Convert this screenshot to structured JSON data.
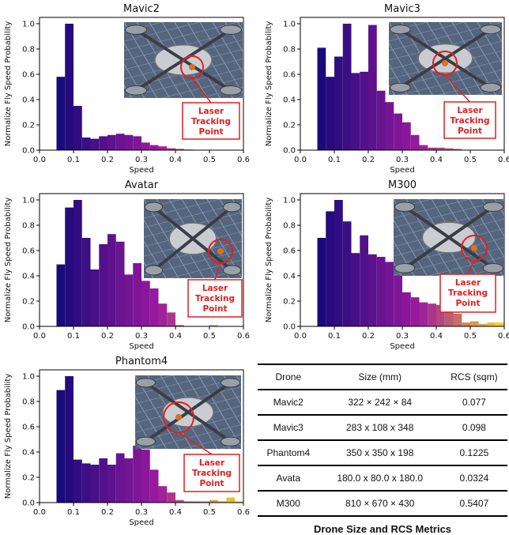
{
  "chart_data": [
    {
      "type": "bar",
      "title": "Mavic2",
      "xlabel": "Speed",
      "ylabel": "Normalize Fly Speed Probability",
      "xlim": [
        0.0,
        0.6
      ],
      "ylim": [
        0.0,
        1.05
      ],
      "xticks": [
        "0.0",
        "0.1",
        "0.2",
        "0.3",
        "0.4",
        "0.5",
        "0.6"
      ],
      "yticks": [
        "0.0",
        "0.2",
        "0.4",
        "0.6",
        "0.8",
        "1.0"
      ],
      "x": [
        0.05,
        0.075,
        0.1,
        0.125,
        0.15,
        0.175,
        0.2,
        0.225,
        0.25,
        0.275,
        0.3,
        0.325,
        0.35,
        0.375,
        0.4,
        0.425,
        0.45,
        0.475,
        0.5,
        0.525,
        0.55,
        0.575
      ],
      "bin_width": 0.025,
      "values": [
        0.58,
        1.0,
        0.35,
        0.1,
        0.09,
        0.11,
        0.12,
        0.13,
        0.12,
        0.11,
        0.06,
        0.04,
        0.03,
        0.015,
        0.01,
        0.005,
        0.0,
        0.0,
        0.0,
        0.0,
        0.0,
        0.0
      ],
      "photo_label": "Laser\nTracking\nPoint"
    },
    {
      "type": "bar",
      "title": "Mavic3",
      "xlabel": "Speed",
      "ylabel": "Normalize Fly Speed Probability",
      "xlim": [
        0.0,
        0.6
      ],
      "ylim": [
        0.0,
        1.05
      ],
      "xticks": [
        "0.0",
        "0.1",
        "0.2",
        "0.3",
        "0.4",
        "0.5",
        "0.6"
      ],
      "yticks": [
        "0.0",
        "0.2",
        "0.4",
        "0.6",
        "0.8",
        "1.0"
      ],
      "x": [
        0.05,
        0.075,
        0.1,
        0.125,
        0.15,
        0.175,
        0.2,
        0.225,
        0.25,
        0.275,
        0.3,
        0.325,
        0.35,
        0.375,
        0.4,
        0.425,
        0.45,
        0.475,
        0.5,
        0.525,
        0.55,
        0.575
      ],
      "bin_width": 0.025,
      "values": [
        0.81,
        0.58,
        0.74,
        1.0,
        0.61,
        0.62,
        0.99,
        0.47,
        0.38,
        0.29,
        0.22,
        0.12,
        0.04,
        0.02,
        0.02,
        0.015,
        0.01,
        0.0,
        0.0,
        0.0,
        0.0,
        0.0
      ],
      "photo_label": "Laser\nTracking\nPoint"
    },
    {
      "type": "bar",
      "title": "Avatar",
      "xlabel": "Speed",
      "ylabel": "Normalize Fly Speed Probability",
      "xlim": [
        0.0,
        0.6
      ],
      "ylim": [
        0.0,
        1.05
      ],
      "xticks": [
        "0.0",
        "0.1",
        "0.2",
        "0.3",
        "0.4",
        "0.5",
        "0.6"
      ],
      "yticks": [
        "0.0",
        "0.2",
        "0.4",
        "0.6",
        "0.8",
        "1.0"
      ],
      "x": [
        0.05,
        0.075,
        0.1,
        0.125,
        0.15,
        0.175,
        0.2,
        0.225,
        0.25,
        0.275,
        0.3,
        0.325,
        0.35,
        0.375,
        0.4,
        0.425,
        0.45,
        0.475,
        0.5,
        0.525,
        0.55,
        0.575
      ],
      "bin_width": 0.025,
      "values": [
        0.49,
        0.94,
        1.0,
        0.7,
        0.45,
        0.65,
        0.73,
        0.67,
        0.41,
        0.5,
        0.36,
        0.3,
        0.18,
        0.11,
        0.01,
        0.0,
        0.0,
        0.0,
        0.01,
        0.0,
        0.0,
        0.0
      ],
      "photo_label": "Laser\nTracking\nPoint"
    },
    {
      "type": "bar",
      "title": "M300",
      "xlabel": "Speed",
      "ylabel": "Normalize Fly Speed Probability",
      "xlim": [
        0.0,
        0.6
      ],
      "ylim": [
        0.0,
        1.05
      ],
      "xticks": [
        "0.0",
        "0.1",
        "0.2",
        "0.3",
        "0.4",
        "0.5",
        "0.6"
      ],
      "yticks": [
        "0.0",
        "0.2",
        "0.4",
        "0.6",
        "0.8",
        "1.0"
      ],
      "x": [
        0.05,
        0.075,
        0.1,
        0.125,
        0.15,
        0.175,
        0.2,
        0.225,
        0.25,
        0.275,
        0.3,
        0.325,
        0.35,
        0.375,
        0.4,
        0.425,
        0.45,
        0.475,
        0.5,
        0.525,
        0.55,
        0.575
      ],
      "bin_width": 0.025,
      "values": [
        0.7,
        0.91,
        1.0,
        0.83,
        0.58,
        0.72,
        0.57,
        0.55,
        0.51,
        0.44,
        0.27,
        0.23,
        0.19,
        0.18,
        0.17,
        0.16,
        0.1,
        0.03,
        0.04,
        0.02,
        0.03,
        0.03
      ],
      "photo_label": "Laser\nTracking\nPoint"
    },
    {
      "type": "bar",
      "title": "Phantom4",
      "xlabel": "Speed",
      "ylabel": "Normalize Fly Speed Probability",
      "xlim": [
        0.0,
        0.6
      ],
      "ylim": [
        0.0,
        1.05
      ],
      "xticks": [
        "0.0",
        "0.1",
        "0.2",
        "0.3",
        "0.4",
        "0.5",
        "0.6"
      ],
      "yticks": [
        "0.0",
        "0.2",
        "0.4",
        "0.6",
        "0.8",
        "1.0"
      ],
      "x": [
        0.05,
        0.075,
        0.1,
        0.125,
        0.15,
        0.175,
        0.2,
        0.225,
        0.25,
        0.275,
        0.3,
        0.325,
        0.35,
        0.375,
        0.4,
        0.425,
        0.45,
        0.475,
        0.5,
        0.525,
        0.55,
        0.575
      ],
      "bin_width": 0.025,
      "values": [
        0.89,
        1.0,
        0.34,
        0.31,
        0.3,
        0.35,
        0.3,
        0.39,
        0.35,
        0.45,
        0.42,
        0.26,
        0.13,
        0.08,
        0.02,
        0.01,
        0.01,
        0.01,
        0.02,
        0.01,
        0.04,
        0.01
      ],
      "photo_label": "Laser\nTracking\nPoint"
    }
  ],
  "table": {
    "headers": [
      "Drone",
      "Size (mm)",
      "RCS (sqm)"
    ],
    "rows": [
      [
        "Mavic2",
        "322 × 242 × 84",
        "0.077"
      ],
      [
        "Mavic3",
        "283 x 108 x 348",
        "0.098"
      ],
      [
        "Phantom4",
        "350 x 350 x 198",
        "0.1225"
      ],
      [
        "Avata",
        "180.0 x 80.0 x 180.0",
        "0.0324"
      ],
      [
        "M300",
        "810 × 670 × 430",
        "0.5407"
      ]
    ],
    "caption": "Drone Size and RCS Metrics"
  },
  "colors": {
    "bar_start": "#1a0a7a",
    "bar_mid": "#9c1aa0",
    "bar_end": "#f5d020",
    "annotation": "#e02020"
  }
}
